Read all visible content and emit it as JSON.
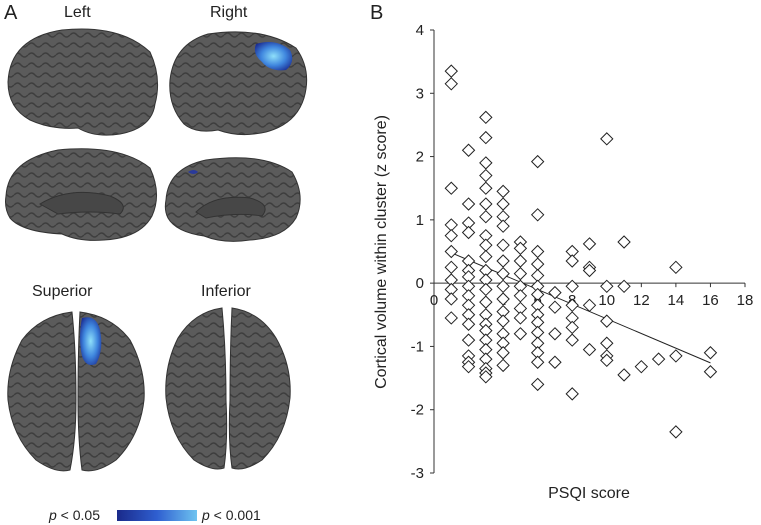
{
  "panelA": {
    "letter": "A",
    "labels": {
      "left": "Left",
      "right": "Right",
      "superior": "Superior",
      "inferior": "Inferior"
    },
    "legend": {
      "low_p": "p",
      "low_rest": " < 0.05",
      "high_p": "p",
      "high_rest": " < 0.001"
    },
    "colors": {
      "brain": "#585858",
      "blob_dark": "#1f3da0",
      "blob_light": "#7fd2f5"
    }
  },
  "panelB": {
    "letter": "B"
  },
  "chart_data": {
    "type": "scatter",
    "xlabel": "PSQI score",
    "ylabel": "Cortical volume within cluster (z score)",
    "xlim": [
      0,
      18
    ],
    "ylim": [
      -3,
      4
    ],
    "xticks": [
      0,
      2,
      4,
      6,
      8,
      10,
      12,
      14,
      16,
      18
    ],
    "yticks": [
      -3,
      -2,
      -1,
      0,
      1,
      2,
      3,
      4
    ],
    "fit_line": {
      "x": [
        1,
        16
      ],
      "y": [
        0.48,
        -1.26
      ]
    },
    "points": [
      [
        1,
        3.35
      ],
      [
        1,
        3.15
      ],
      [
        1,
        1.5
      ],
      [
        1,
        0.92
      ],
      [
        1,
        0.75
      ],
      [
        1,
        0.5
      ],
      [
        1,
        0.25
      ],
      [
        1,
        0.05
      ],
      [
        1,
        -0.1
      ],
      [
        1,
        -0.25
      ],
      [
        1,
        -0.55
      ],
      [
        2,
        2.1
      ],
      [
        2,
        1.25
      ],
      [
        2,
        0.95
      ],
      [
        2,
        0.8
      ],
      [
        2,
        0.35
      ],
      [
        2,
        0.2
      ],
      [
        2,
        0.1
      ],
      [
        2,
        -0.05
      ],
      [
        2,
        -0.2
      ],
      [
        2,
        -0.35
      ],
      [
        2,
        -0.5
      ],
      [
        2,
        -0.65
      ],
      [
        2,
        -0.9
      ],
      [
        2,
        -1.15
      ],
      [
        2,
        -1.25
      ],
      [
        2,
        -1.32
      ],
      [
        3,
        2.62
      ],
      [
        3,
        2.3
      ],
      [
        3,
        1.9
      ],
      [
        3,
        1.7
      ],
      [
        3,
        1.5
      ],
      [
        3,
        1.25
      ],
      [
        3,
        1.05
      ],
      [
        3,
        0.75
      ],
      [
        3,
        0.6
      ],
      [
        3,
        0.42
      ],
      [
        3,
        0.2
      ],
      [
        3,
        0.05
      ],
      [
        3,
        -0.1
      ],
      [
        3,
        -0.3
      ],
      [
        3,
        -0.5
      ],
      [
        3,
        -0.65
      ],
      [
        3,
        -0.75
      ],
      [
        3,
        -0.9
      ],
      [
        3,
        -1.05
      ],
      [
        3,
        -1.2
      ],
      [
        3,
        -1.35
      ],
      [
        3,
        -1.42
      ],
      [
        3,
        -1.48
      ],
      [
        4,
        1.45
      ],
      [
        4,
        1.25
      ],
      [
        4,
        1.05
      ],
      [
        4,
        0.9
      ],
      [
        4,
        0.6
      ],
      [
        4,
        0.35
      ],
      [
        4,
        0.15
      ],
      [
        4,
        -0.05
      ],
      [
        4,
        -0.25
      ],
      [
        4,
        -0.45
      ],
      [
        4,
        -0.6
      ],
      [
        4,
        -0.8
      ],
      [
        4,
        -0.95
      ],
      [
        4,
        -1.1
      ],
      [
        4,
        -1.3
      ],
      [
        5,
        0.65
      ],
      [
        5,
        0.55
      ],
      [
        5,
        0.35
      ],
      [
        5,
        0.15
      ],
      [
        5,
        -0.05
      ],
      [
        5,
        -0.2
      ],
      [
        5,
        -0.4
      ],
      [
        5,
        -0.55
      ],
      [
        5,
        -0.8
      ],
      [
        6,
        1.92
      ],
      [
        6,
        1.08
      ],
      [
        6,
        0.5
      ],
      [
        6,
        0.3
      ],
      [
        6,
        0.12
      ],
      [
        6,
        -0.05
      ],
      [
        6,
        -0.18
      ],
      [
        6,
        -0.35
      ],
      [
        6,
        -0.5
      ],
      [
        6,
        -0.62
      ],
      [
        6,
        -0.78
      ],
      [
        6,
        -0.95
      ],
      [
        6,
        -1.1
      ],
      [
        6,
        -1.25
      ],
      [
        6,
        -1.6
      ],
      [
        7,
        -0.15
      ],
      [
        7,
        -0.38
      ],
      [
        7,
        -0.8
      ],
      [
        7,
        -1.25
      ],
      [
        8,
        0.5
      ],
      [
        8,
        0.35
      ],
      [
        8,
        -0.05
      ],
      [
        8,
        -0.35
      ],
      [
        8,
        -0.55
      ],
      [
        8,
        -0.7
      ],
      [
        8,
        -0.9
      ],
      [
        8,
        -1.75
      ],
      [
        9,
        0.62
      ],
      [
        9,
        0.25
      ],
      [
        9,
        0.2
      ],
      [
        9,
        -0.35
      ],
      [
        9,
        -1.05
      ],
      [
        10,
        2.28
      ],
      [
        10,
        -0.05
      ],
      [
        10,
        -0.6
      ],
      [
        10,
        -0.95
      ],
      [
        10,
        -1.15
      ],
      [
        10,
        -1.22
      ],
      [
        11,
        0.65
      ],
      [
        11,
        -0.05
      ],
      [
        11,
        -1.45
      ],
      [
        12,
        -1.32
      ],
      [
        13,
        -1.2
      ],
      [
        14,
        0.25
      ],
      [
        14,
        -1.15
      ],
      [
        14,
        -2.35
      ],
      [
        16,
        -1.1
      ],
      [
        16,
        -1.4
      ]
    ]
  }
}
